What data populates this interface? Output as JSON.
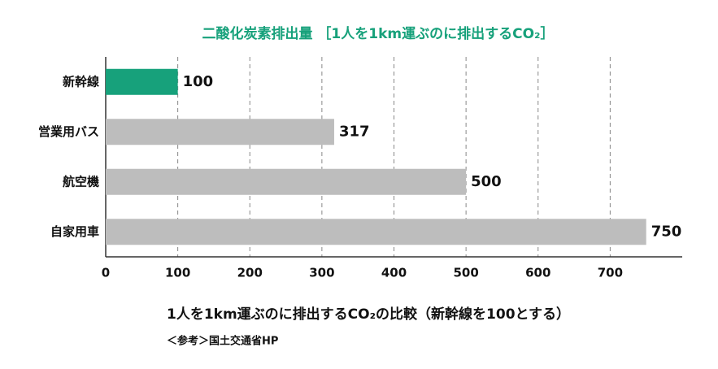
{
  "chart_data": {
    "type": "hbar",
    "title": "二酸化炭素排出量 ［1人を1km運ぶのに排出するCO₂］",
    "categories": [
      "新幹線",
      "営業用バス",
      "航空機",
      "自家用車"
    ],
    "values": [
      100,
      317,
      500,
      750
    ],
    "colors": [
      "#17a17b",
      "#bdbdbd",
      "#bdbdbd",
      "#bdbdbd"
    ],
    "xlim": [
      0,
      800
    ],
    "xticks": [
      0,
      100,
      200,
      300,
      400,
      500,
      600,
      700
    ],
    "grid": true,
    "caption": "1人を1km運ぶのに排出するCO₂の比較（新幹線を100とする）",
    "source": "＜参考＞国土交通省HP"
  }
}
